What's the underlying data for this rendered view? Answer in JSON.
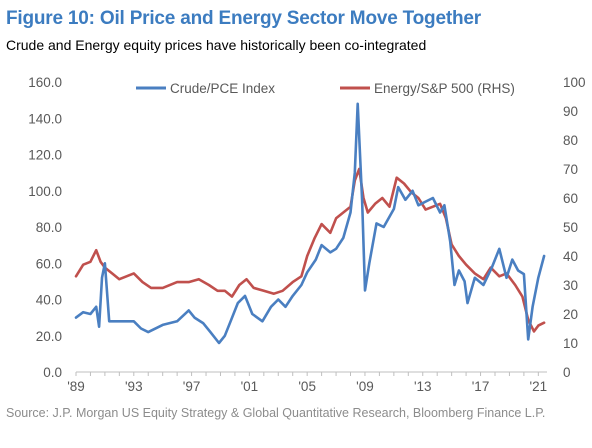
{
  "title": "Figure 10: Oil Price and Energy Sector Move Together",
  "subtitle": "Crude and Energy equity prices have historically been co-integrated",
  "source": "Source: J.P. Morgan US Equity Strategy & Global Quantitative Research, Bloomberg Finance L.P.",
  "colors": {
    "crude": "#4a7fc1",
    "energy": "#c0504d",
    "title": "#3c7cc0",
    "axis": "#595959"
  },
  "chart_data": {
    "type": "line",
    "x_axis": {
      "min": 1989,
      "max": 2021.6,
      "ticks": [
        "'89",
        "'93",
        "'97",
        "'01",
        "'05",
        "'09",
        "'13",
        "'17",
        "'21"
      ],
      "tick_values": [
        1989,
        1993,
        1997,
        2001,
        2005,
        2009,
        2013,
        2017,
        2021
      ]
    },
    "y_left": {
      "min": 0,
      "max": 160,
      "ticks": [
        "0.0",
        "20.0",
        "40.0",
        "60.0",
        "80.0",
        "100.0",
        "120.0",
        "140.0",
        "160.0"
      ]
    },
    "y_right": {
      "min": 0,
      "max": 100,
      "ticks": [
        "0",
        "10",
        "20",
        "30",
        "40",
        "50",
        "60",
        "70",
        "80",
        "90",
        "100"
      ]
    },
    "legend_position": "top",
    "series": [
      {
        "name": "Crude/PCE Index",
        "axis": "left",
        "color": "#4a7fc1",
        "x": [
          1989.0,
          1989.5,
          1990.0,
          1990.4,
          1990.6,
          1990.8,
          1991.0,
          1991.3,
          1992.0,
          1993.0,
          1993.5,
          1994.0,
          1995.0,
          1996.0,
          1996.8,
          1997.2,
          1997.8,
          1998.3,
          1998.9,
          1999.3,
          1999.7,
          2000.2,
          2000.7,
          2001.2,
          2001.9,
          2002.5,
          2003.0,
          2003.5,
          2004.0,
          2004.6,
          2005.0,
          2005.6,
          2006.0,
          2006.6,
          2007.0,
          2007.5,
          2008.0,
          2008.3,
          2008.5,
          2008.8,
          2009.0,
          2009.3,
          2009.8,
          2010.3,
          2011.0,
          2011.3,
          2011.8,
          2012.3,
          2012.7,
          2013.2,
          2013.7,
          2014.2,
          2014.5,
          2014.9,
          2015.2,
          2015.5,
          2015.9,
          2016.1,
          2016.6,
          2017.2,
          2017.8,
          2018.3,
          2018.8,
          2019.2,
          2019.6,
          2020.0,
          2020.3,
          2020.6,
          2021.0,
          2021.4
        ],
        "y": [
          30,
          33,
          32,
          36,
          25,
          52,
          60,
          28,
          28,
          28,
          24,
          22,
          26,
          28,
          34,
          30,
          27,
          22,
          16,
          20,
          28,
          38,
          42,
          32,
          28,
          36,
          40,
          36,
          42,
          48,
          55,
          62,
          70,
          66,
          68,
          74,
          88,
          110,
          148,
          95,
          45,
          60,
          82,
          80,
          90,
          102,
          95,
          100,
          92,
          94,
          96,
          88,
          92,
          72,
          48,
          56,
          50,
          38,
          52,
          48,
          58,
          68,
          52,
          62,
          56,
          54,
          18,
          36,
          52,
          64
        ]
      },
      {
        "name": "Energy/S&P 500 (RHS)",
        "axis": "right",
        "color": "#c0504d",
        "x": [
          1989.0,
          1989.5,
          1990.0,
          1990.4,
          1990.7,
          1991.0,
          1991.5,
          1992.0,
          1993.0,
          1993.6,
          1994.2,
          1995.0,
          1996.0,
          1996.8,
          1997.5,
          1998.2,
          1998.8,
          1999.3,
          1999.8,
          2000.3,
          2000.8,
          2001.3,
          2002.0,
          2002.7,
          2003.3,
          2004.0,
          2004.6,
          2005.0,
          2005.5,
          2006.0,
          2006.6,
          2007.0,
          2007.5,
          2008.0,
          2008.3,
          2008.6,
          2008.9,
          2009.2,
          2009.7,
          2010.2,
          2010.7,
          2011.2,
          2011.7,
          2012.2,
          2012.7,
          2013.2,
          2013.7,
          2014.2,
          2014.6,
          2015.0,
          2015.5,
          2016.0,
          2016.6,
          2017.2,
          2017.7,
          2018.3,
          2018.8,
          2019.4,
          2019.9,
          2020.3,
          2020.7,
          2021.0,
          2021.4
        ],
        "y": [
          33,
          37,
          38,
          42,
          38,
          36,
          34,
          32,
          34,
          31,
          29,
          29,
          31,
          31,
          32,
          30,
          28,
          28,
          26,
          30,
          32,
          29,
          28,
          27,
          28,
          31,
          33,
          40,
          46,
          51,
          48,
          53,
          55,
          57,
          66,
          70,
          60,
          55,
          58,
          60,
          57,
          67,
          65,
          62,
          60,
          56,
          57,
          58,
          53,
          44,
          40,
          37,
          34,
          32,
          36,
          33,
          34,
          30,
          26,
          18,
          14,
          16,
          17
        ]
      }
    ]
  }
}
